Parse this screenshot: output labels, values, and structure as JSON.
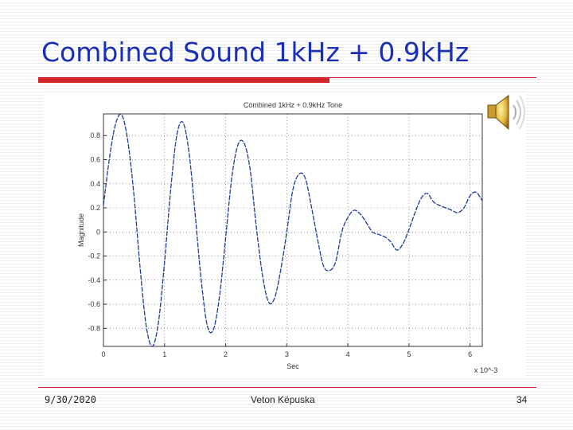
{
  "slide": {
    "title": "Combined Sound 1kHz + 0.9kHz",
    "footer": {
      "date": "9/30/2020",
      "author": "Veton Këpuska",
      "page": "34"
    },
    "icon": "speaker-icon",
    "colors": {
      "title": "#1a2fb8",
      "accent": "#d0242a",
      "series": "#1e3a9e"
    }
  },
  "chart_data": {
    "type": "line",
    "title": "Combined 1kHz + 0.9kHz Tone",
    "xlabel": "Sec",
    "ylabel": "Magnitude",
    "x_multiplier": "x 10^-3",
    "xlim": [
      0,
      6.2
    ],
    "ylim": [
      -0.95,
      0.98
    ],
    "xticks": [
      0,
      1,
      2,
      3,
      4,
      5,
      6
    ],
    "xtick_labels": [
      "0",
      "1",
      "2",
      "3",
      "4",
      "5",
      "6"
    ],
    "yticks": [
      0.8,
      0.6,
      0.4,
      0.2,
      0,
      -0.2,
      -0.4,
      -0.6,
      -0.8
    ],
    "ytick_labels": [
      "0.8",
      "0.6",
      "0.4",
      "0.2",
      "0",
      "-0.2",
      "-0.4",
      "-0.6",
      "-0.8"
    ],
    "grid": true,
    "series": [
      {
        "style": "dashed",
        "x": [
          0,
          0.1,
          0.2,
          0.3,
          0.4,
          0.5,
          0.6,
          0.7,
          0.8,
          0.9,
          1.0,
          1.1,
          1.2,
          1.3,
          1.4,
          1.5,
          1.6,
          1.7,
          1.8,
          1.9,
          2.0,
          2.1,
          2.2,
          2.3,
          2.4,
          2.5,
          2.6,
          2.7,
          2.8,
          2.9,
          3.0,
          3.1,
          3.2,
          3.3,
          3.4,
          3.5,
          3.6,
          3.7,
          3.8,
          3.9,
          4.0,
          4.1,
          4.2,
          4.3,
          4.4,
          4.5,
          4.6,
          4.7,
          4.8,
          4.9,
          5.0,
          5.1,
          5.2,
          5.3,
          5.4,
          5.5,
          5.6,
          5.7,
          5.8,
          5.9,
          6.0,
          6.1,
          6.2
        ],
        "y": [
          0.22,
          0.62,
          0.9,
          0.97,
          0.75,
          0.3,
          -0.3,
          -0.78,
          -0.95,
          -0.75,
          -0.25,
          0.35,
          0.8,
          0.91,
          0.66,
          0.15,
          -0.4,
          -0.78,
          -0.81,
          -0.53,
          -0.05,
          0.45,
          0.72,
          0.74,
          0.52,
          0.05,
          -0.35,
          -0.58,
          -0.55,
          -0.32,
          0.0,
          0.35,
          0.48,
          0.45,
          0.22,
          -0.05,
          -0.28,
          -0.32,
          -0.25,
          0.0,
          0.12,
          0.18,
          0.15,
          0.08,
          0.0,
          -0.02,
          -0.04,
          -0.08,
          -0.15,
          -0.1,
          0.02,
          0.16,
          0.28,
          0.32,
          0.25,
          0.22,
          0.2,
          0.18,
          0.16,
          0.2,
          0.3,
          0.33,
          0.26
        ]
      }
    ]
  }
}
